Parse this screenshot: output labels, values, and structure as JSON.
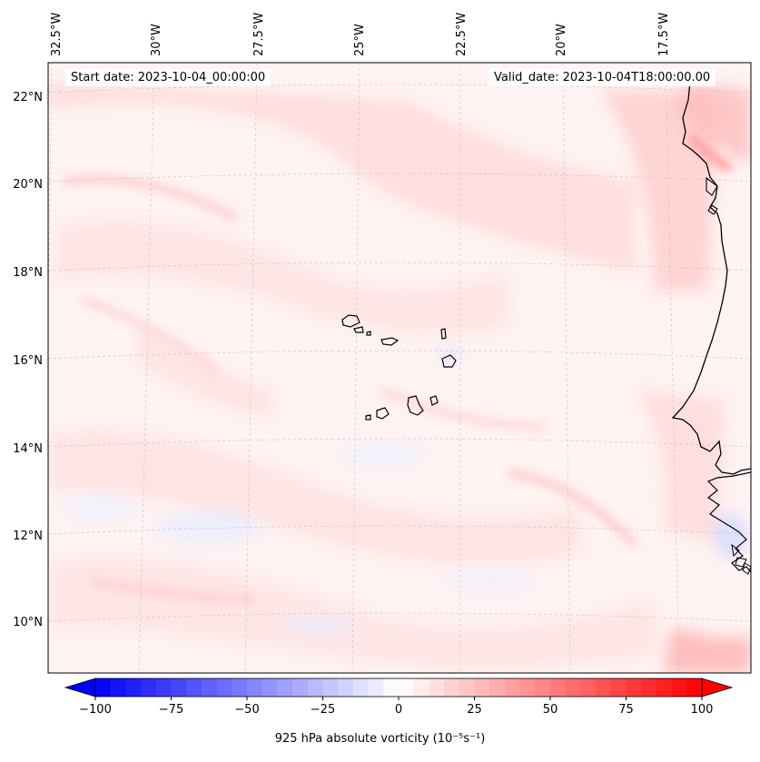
{
  "header": {
    "start_date": "Start date: 2023-10-04_00:00:00",
    "valid_date": "Valid_date: 2023-10-04T18:00:00.00"
  },
  "map": {
    "region": "Cape Verde / West Africa coast",
    "projection": "Lambert conformal (curved graticule)",
    "lon_labels": [
      "32.5°W",
      "30°W",
      "27.5°W",
      "25°W",
      "22.5°W",
      "20°W",
      "17.5°W"
    ],
    "lat_labels": [
      "22°N",
      "20°N",
      "18°N",
      "16°N",
      "14°N",
      "12°N",
      "10°N"
    ],
    "gridlines": true,
    "field": "925 hPa absolute vorticity",
    "field_character": "mostly weak positive (light pink) with scattered weak negative (light blue) patches; stronger positive near African coast"
  },
  "colorbar": {
    "min": -100,
    "max": 100,
    "ticks": [
      "−100",
      "−75",
      "−50",
      "−25",
      "0",
      "25",
      "50",
      "75",
      "100"
    ],
    "label": "925 hPa absolute vorticity (10⁻⁵s⁻¹)",
    "negative_color": "#0000ff",
    "zero_color": "#ffffff",
    "positive_color": "#ff0000",
    "extend": "both"
  }
}
